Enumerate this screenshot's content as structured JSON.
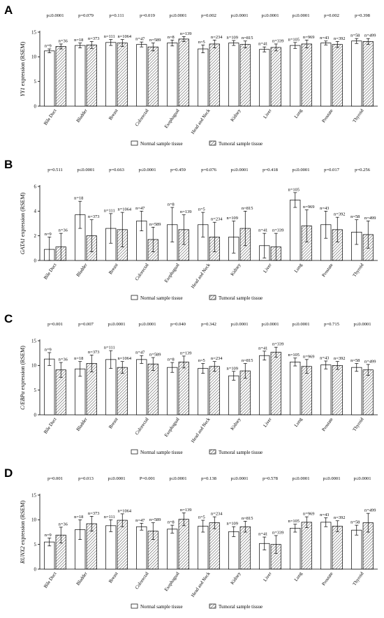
{
  "legend": {
    "normal": "Normal sample tissue",
    "tumoral": "Tumoral sample tissue"
  },
  "colors": {
    "bar_fill": "#ffffff",
    "stroke": "#000000",
    "hatch": "#555555"
  },
  "chart_data": [
    {
      "type": "bar",
      "panel_label": "A",
      "title": "",
      "ylabel_gene": "YY1",
      "ylabel_suffix": " expression (RSEM)",
      "ylim": [
        0,
        15
      ],
      "yticks": [
        0,
        5,
        10,
        15
      ],
      "categories": [
        "Bile Duct",
        "Bladder",
        "Breast",
        "Colorectal",
        "Esophagual",
        "Head and Neck",
        "Kidney",
        "Liver",
        "Lung",
        "Prostate",
        "Thyroid"
      ],
      "p_values": [
        "p≤0.0001",
        "p=0.079",
        "p=0.111",
        "p=0.019",
        "p≤0.0001",
        "p=0.002",
        "p≤0.0001",
        "p≤0.0001",
        "p≤0.0001",
        "p=0.002",
        "p=0.398"
      ],
      "series": [
        {
          "name": "Normal sample tissue",
          "values": [
            11.2,
            12.3,
            12.9,
            12.5,
            12.8,
            11.6,
            12.8,
            11.5,
            12.3,
            12.8,
            13.2
          ],
          "errors": [
            0.4,
            0.5,
            0.6,
            0.5,
            0.6,
            0.8,
            0.5,
            0.5,
            0.6,
            0.4,
            0.5
          ],
          "n": [
            "n=9",
            "n=18",
            "n=111",
            "n=47",
            "n=8",
            "n=5",
            "n=109",
            "n=41",
            "n=105",
            "n=43",
            "n=58"
          ]
        },
        {
          "name": "Tumoral sample tissue",
          "values": [
            12.1,
            12.4,
            12.8,
            12.0,
            13.6,
            12.6,
            12.5,
            11.9,
            12.6,
            12.5,
            13.1
          ],
          "errors": [
            0.5,
            0.7,
            0.7,
            0.8,
            0.5,
            0.8,
            0.7,
            0.7,
            0.8,
            0.6,
            0.6
          ],
          "n": [
            "n=36",
            "n=373",
            "n=1064",
            "n=589",
            "n=139",
            "n=234",
            "n=815",
            "n=339",
            "n=969",
            "n=392",
            "n=499"
          ]
        }
      ]
    },
    {
      "type": "bar",
      "panel_label": "B",
      "title": "",
      "ylabel_gene": "GATA1",
      "ylabel_suffix": " expression (RSEM)",
      "ylim": [
        0,
        6
      ],
      "yticks": [
        0,
        2,
        4,
        6
      ],
      "categories": [
        "Bile Duct",
        "Bladder",
        "Breast",
        "Colorectal",
        "Esophagual",
        "Head and Neck",
        "Kidney",
        "Liver",
        "Lung",
        "Prostate",
        "Thyroid"
      ],
      "p_values": [
        "p=0.511",
        "p≤0.0001",
        "p=0.663",
        "p≤0.0001",
        "p=0.459",
        "p=0.076",
        "p≤0.0001",
        "p=0.418",
        "p≤0.0001",
        "p=0.017",
        "p=0.256"
      ],
      "series": [
        {
          "name": "Normal sample tissue",
          "values": [
            0.9,
            3.7,
            2.6,
            3.2,
            2.9,
            2.9,
            1.9,
            1.2,
            4.9,
            2.9,
            2.3
          ],
          "errors": [
            1.0,
            1.1,
            1.2,
            0.8,
            1.4,
            1.0,
            1.3,
            1.0,
            0.6,
            1.1,
            1.0
          ],
          "n": [
            "n=9",
            "n=18",
            "n=111",
            "n=47",
            "n=8",
            "n=5",
            "n=109",
            "n=41",
            "n=105",
            "n=43",
            "n=58"
          ]
        },
        {
          "name": "Tumoral sample tissue",
          "values": [
            1.1,
            2.0,
            2.5,
            1.7,
            2.5,
            1.9,
            2.6,
            1.1,
            2.8,
            2.5,
            2.1
          ],
          "errors": [
            1.1,
            1.3,
            1.4,
            1.0,
            1.2,
            1.2,
            1.4,
            1.1,
            1.3,
            1.0,
            1.1
          ],
          "n": [
            "n=36",
            "n=373",
            "n=1064",
            "n=589",
            "n=139",
            "n=234",
            "n=815",
            "n=339",
            "n=969",
            "n=392",
            "n=499"
          ]
        }
      ]
    },
    {
      "type": "bar",
      "panel_label": "C",
      "title": "",
      "ylabel_gene": "C/EBPα",
      "ylabel_suffix": " expression (RSEM)",
      "ylim": [
        0,
        15
      ],
      "yticks": [
        0,
        5,
        10,
        15
      ],
      "categories": [
        "Bile Duct",
        "Bladder",
        "Breast",
        "Colorectal",
        "Esophagual",
        "Head and Neck",
        "Kidney",
        "Liver",
        "Lung",
        "Prostate",
        "Thyroid"
      ],
      "p_values": [
        "p=0.001",
        "p=0.007",
        "p≤0.0001",
        "p≤0.0001",
        "p=0.040",
        "p=0.342",
        "p≤0.0001",
        "p≤0.0001",
        "p≤0.0001",
        "p=0.715",
        "p≤0.0001"
      ],
      "series": [
        {
          "name": "Normal sample tissue",
          "values": [
            11.3,
            9.3,
            11.2,
            11.2,
            9.6,
            9.4,
            7.9,
            12.0,
            10.7,
            10.1,
            9.6
          ],
          "errors": [
            1.3,
            1.5,
            1.8,
            0.8,
            1.0,
            1.0,
            0.9,
            0.9,
            0.8,
            0.8,
            0.8
          ],
          "n": [
            "n=9",
            "n=18",
            "n=111",
            "n=47",
            "n=8",
            "n=5",
            "n=109",
            "n=41",
            "n=105",
            "n=43",
            "n=58"
          ]
        },
        {
          "name": "Tumoral sample tissue",
          "values": [
            9.1,
            10.4,
            9.6,
            10.3,
            10.7,
            9.8,
            8.9,
            12.7,
            9.8,
            10.0,
            9.1
          ],
          "errors": [
            1.5,
            1.7,
            1.2,
            1.3,
            1.2,
            1.0,
            1.5,
            1.0,
            1.4,
            0.8,
            1.1
          ],
          "n": [
            "n=36",
            "n=373",
            "n=1064",
            "n=589",
            "n=139",
            "n=234",
            "n=815",
            "n=339",
            "n=969",
            "n=392",
            "n=499"
          ]
        }
      ]
    },
    {
      "type": "bar",
      "panel_label": "D",
      "title": "",
      "ylabel_gene": "RUNX2",
      "ylabel_suffix": " expression (RSEM)",
      "ylim": [
        0,
        15
      ],
      "yticks": [
        0,
        5,
        10,
        15
      ],
      "categories": [
        "Bile Duct",
        "Bladder",
        "Breast",
        "Colorectal",
        "Esophagual",
        "Head and Neck",
        "Kidney",
        "Liver",
        "Lung",
        "Prostate",
        "Thyroid"
      ],
      "p_values": [
        "p=0.001",
        "p=0.013",
        "p≤0.0001",
        "P=0.001",
        "p≤0.0001",
        "p=0.138",
        "p≤0.0001",
        "p=0.578",
        "p≤0.0001",
        "p≤0.0001",
        "p≤0.0001"
      ],
      "series": [
        {
          "name": "Normal sample tissue",
          "values": [
            5.5,
            8.0,
            8.8,
            8.6,
            8.1,
            8.7,
            7.6,
            5.2,
            8.3,
            9.5,
            7.9
          ],
          "errors": [
            0.8,
            2.0,
            1.2,
            0.7,
            0.8,
            1.2,
            1.0,
            1.3,
            0.8,
            0.9,
            1.0
          ],
          "n": [
            "n=9",
            "n=18",
            "n=111",
            "n=47",
            "n=8",
            "n=5",
            "n=109",
            "n=41",
            "n=105",
            "n=43",
            "n=58"
          ]
        },
        {
          "name": "Tumoral sample tissue",
          "values": [
            6.9,
            9.2,
            9.9,
            7.7,
            10.1,
            9.4,
            8.6,
            5.0,
            9.5,
            8.7,
            9.4
          ],
          "errors": [
            1.6,
            1.5,
            1.3,
            1.7,
            1.3,
            1.2,
            1.1,
            1.8,
            1.1,
            1.1,
            1.9
          ],
          "n": [
            "n=36",
            "n=373",
            "n=1064",
            "n=589",
            "n=139",
            "n=234",
            "n=815",
            "n=339",
            "n=969",
            "n=392",
            "n=499"
          ]
        }
      ]
    }
  ]
}
